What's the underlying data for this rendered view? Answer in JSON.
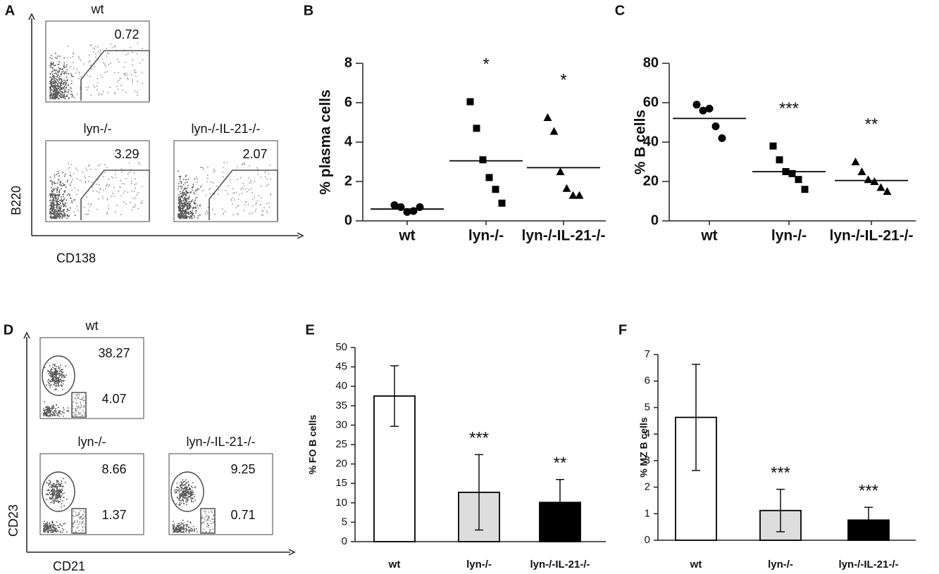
{
  "flow_panels": [
    {
      "label": "A",
      "y_axis": "B220",
      "x_axis": "CD138",
      "plots": [
        {
          "title": "wt",
          "gates": [
            0.72
          ]
        },
        {
          "title": "lyn-/-",
          "gates": [
            3.29
          ]
        },
        {
          "title": "lyn-/-IL-21-/-",
          "gates": [
            2.07
          ]
        }
      ]
    },
    {
      "label": "D",
      "y_axis": "CD23",
      "x_axis": "CD21",
      "plots": [
        {
          "title": "wt",
          "gates": [
            38.27,
            4.07
          ]
        },
        {
          "title": "lyn-/-",
          "gates": [
            8.66,
            1.37
          ]
        },
        {
          "title": "lyn-/-IL-21-/-",
          "gates": [
            9.25,
            0.71
          ]
        }
      ]
    }
  ],
  "chart_data": [
    {
      "type": "dot",
      "label": "B",
      "ylabel": "% plasma cells",
      "categories": [
        "wt",
        "lyn-/-",
        "lyn-/-IL-21-/-"
      ],
      "markers": [
        "circle",
        "square",
        "triangle"
      ],
      "points": [
        [
          0.8,
          0.7,
          0.45,
          0.5,
          0.7
        ],
        [
          6.05,
          4.7,
          3.1,
          2.2,
          1.6,
          0.9
        ],
        [
          5.25,
          4.55,
          2.5,
          1.65,
          1.3,
          1.3
        ]
      ],
      "means": [
        0.6,
        3.05,
        2.7
      ],
      "annotations": [
        null,
        "*",
        "*"
      ],
      "ylim": [
        0,
        8
      ],
      "yticks": [
        0,
        2,
        4,
        6,
        8
      ]
    },
    {
      "type": "dot",
      "label": "C",
      "ylabel": "% B cells",
      "categories": [
        "wt",
        "lyn-/-",
        "lyn-/-IL-21-/-"
      ],
      "markers": [
        "circle",
        "square",
        "triangle"
      ],
      "points": [
        [
          59,
          56,
          57,
          48,
          42
        ],
        [
          38,
          31,
          25,
          24,
          21,
          16
        ],
        [
          30,
          25,
          21,
          20,
          17,
          15
        ]
      ],
      "means": [
        52,
        25,
        20.5
      ],
      "annotations": [
        null,
        "***",
        "**"
      ],
      "ylim": [
        0,
        80
      ],
      "yticks": [
        0,
        20,
        40,
        60,
        80
      ]
    },
    {
      "type": "bar",
      "label": "E",
      "ylabel": "% FO B cells",
      "categories": [
        "wt",
        "lyn-/-",
        "lyn-/-IL-21-/-"
      ],
      "values": [
        37.5,
        12.7,
        10.1
      ],
      "errors": [
        7.8,
        9.7,
        5.9
      ],
      "colors": [
        "#ffffff",
        "#dddddd",
        "#000000"
      ],
      "annotations": [
        null,
        "***",
        "**"
      ],
      "ylim": [
        0,
        50
      ],
      "yticks": [
        0,
        5,
        10,
        15,
        20,
        25,
        30,
        35,
        40,
        45,
        50
      ]
    },
    {
      "type": "bar",
      "label": "F",
      "ylabel": "% MZ B cells",
      "categories": [
        "wt",
        "lyn-/-",
        "lyn-/-IL-21-/-"
      ],
      "values": [
        4.63,
        1.12,
        0.76
      ],
      "errors": [
        2.0,
        0.8,
        0.48
      ],
      "colors": [
        "#ffffff",
        "#dddddd",
        "#000000"
      ],
      "annotations": [
        null,
        "***",
        "***"
      ],
      "ylim": [
        0,
        7
      ],
      "yticks": [
        0,
        1,
        2,
        3,
        4,
        5,
        6,
        7
      ]
    }
  ]
}
